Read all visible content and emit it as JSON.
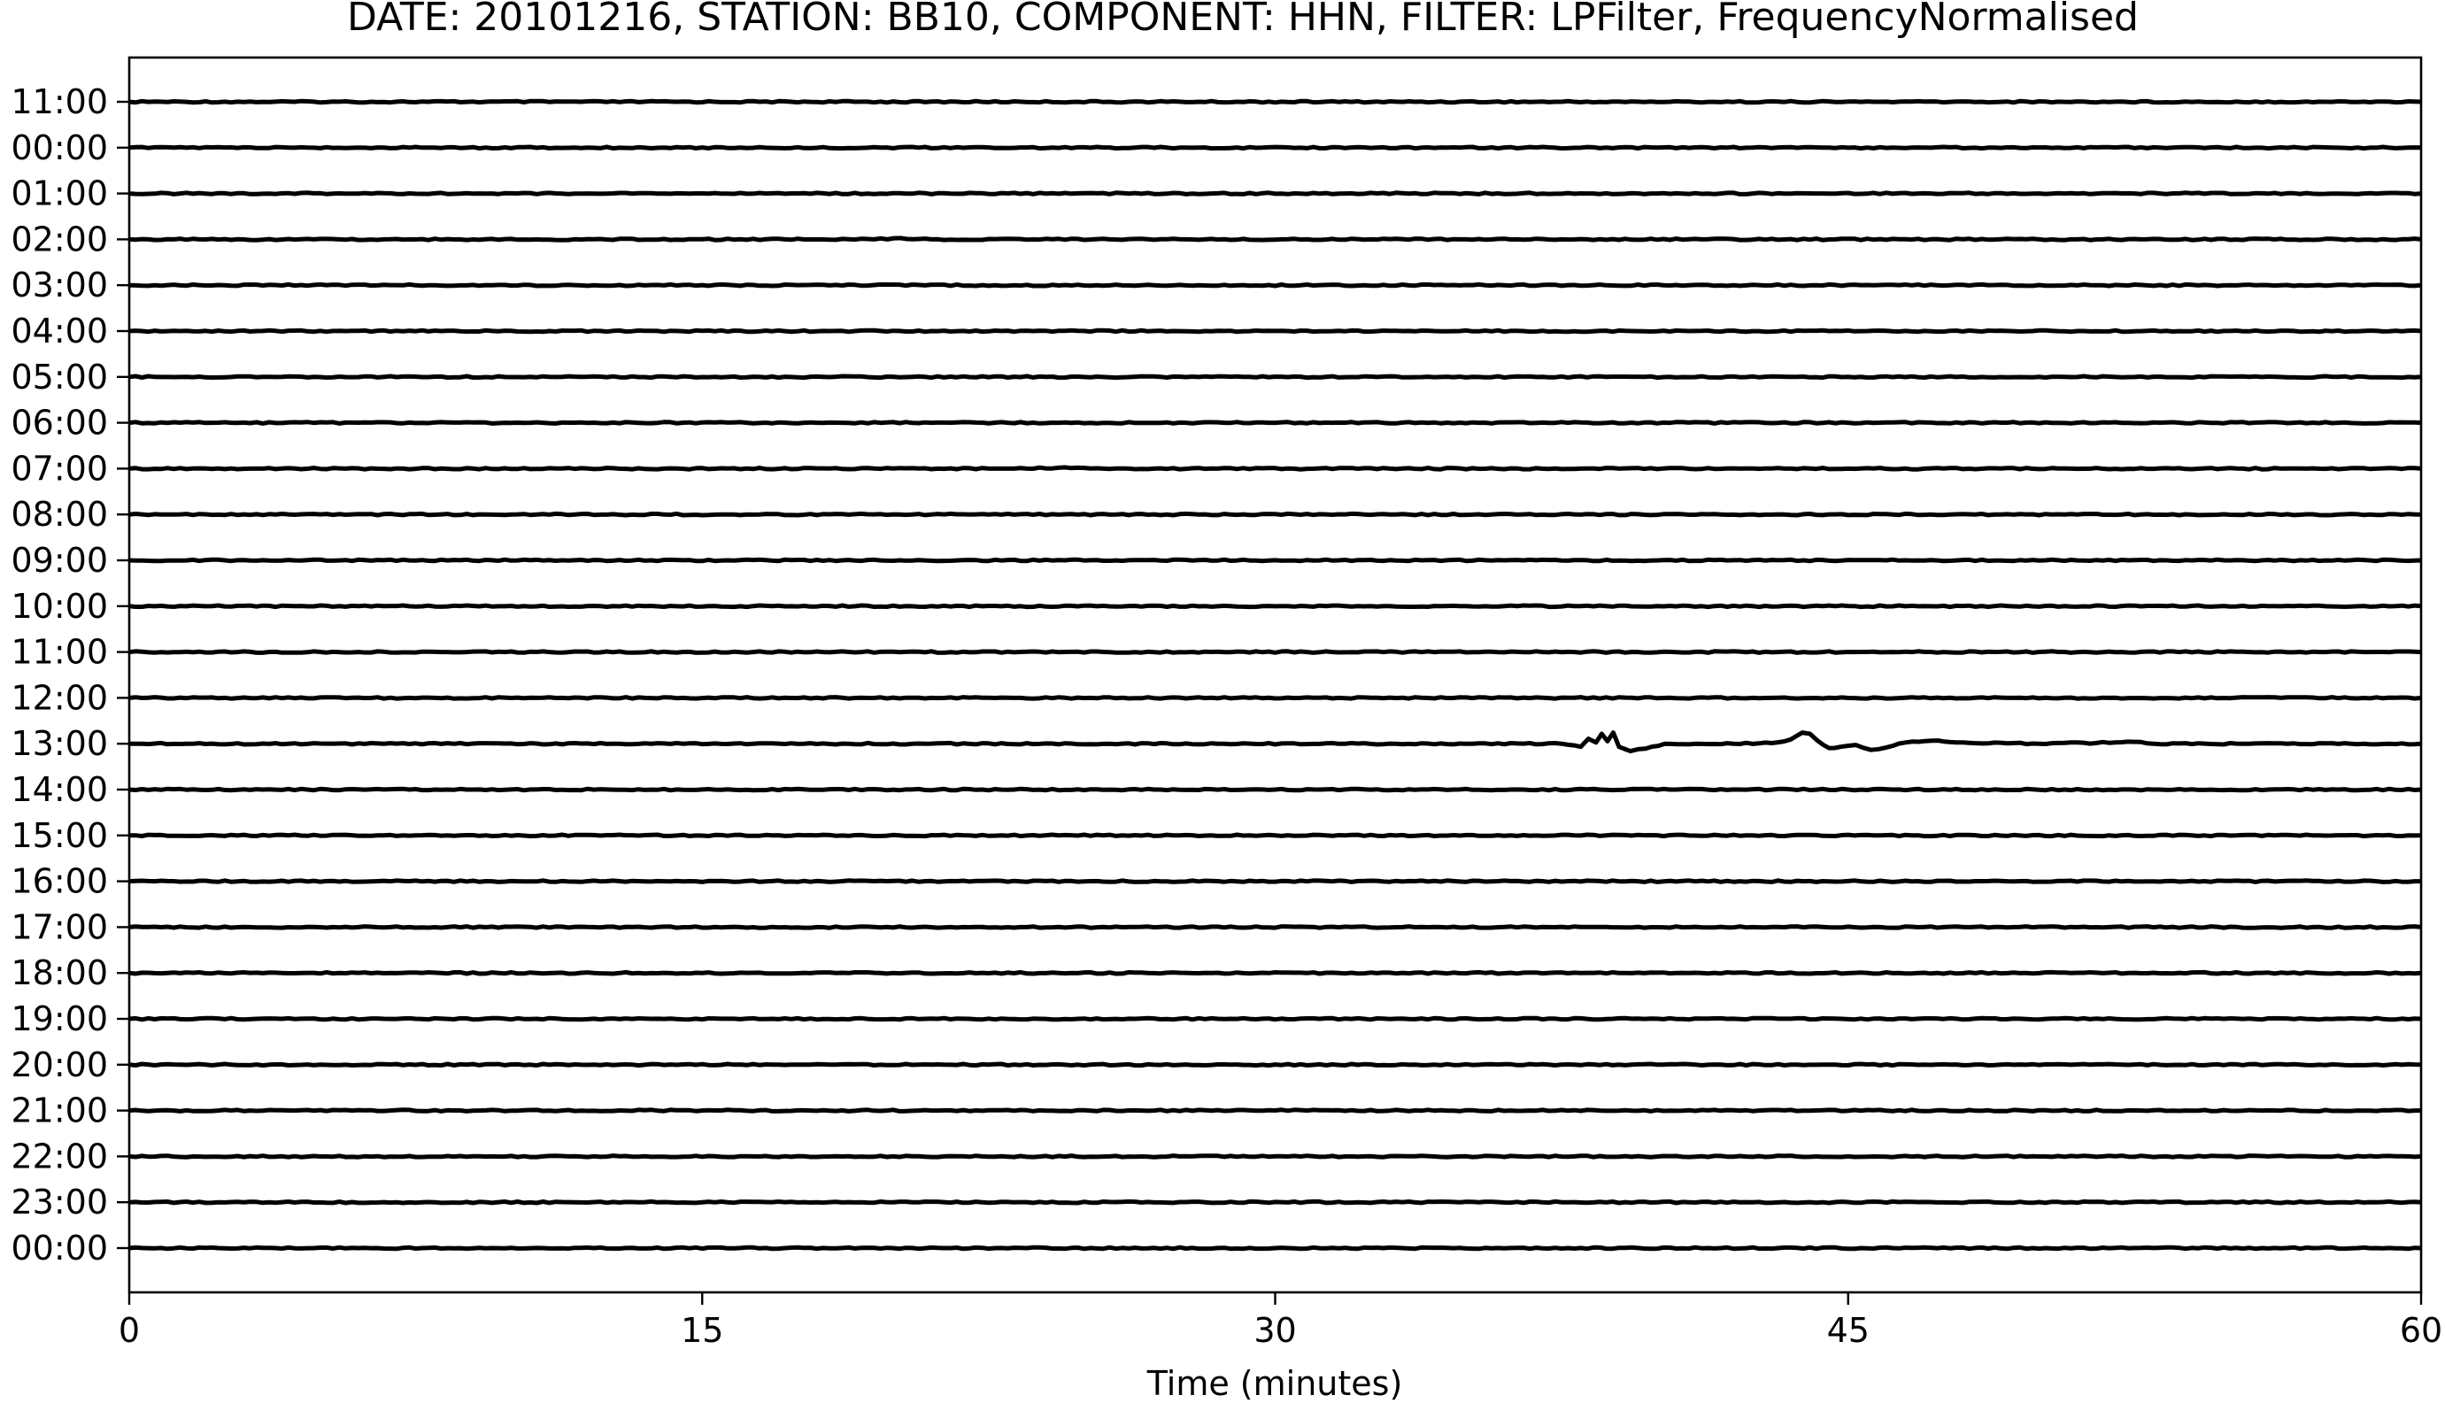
{
  "chart_data": {
    "type": "line",
    "title": "DATE: 20101216, STATION: BB10, COMPONENT: HHN, FILTER: LPFilter, FrequencyNormalised",
    "xlabel": "Time (minutes)",
    "ylabel": "",
    "xlim": [
      0,
      60
    ],
    "x_ticks": [
      0,
      15,
      30,
      45,
      60
    ],
    "y_tick_labels": [
      "11:00",
      "00:00",
      "01:00",
      "02:00",
      "03:00",
      "04:00",
      "05:00",
      "06:00",
      "07:00",
      "08:00",
      "09:00",
      "10:00",
      "11:00",
      "12:00",
      "13:00",
      "14:00",
      "15:00",
      "16:00",
      "17:00",
      "18:00",
      "19:00",
      "20:00",
      "21:00",
      "22:00",
      "23:00",
      "00:00"
    ],
    "grid": false,
    "legend": "none",
    "series": [
      {
        "hour": "11:00",
        "x": [
          0,
          60
        ],
        "y": [
          0,
          0
        ]
      },
      {
        "hour": "00:00",
        "x": [
          0,
          60
        ],
        "y": [
          0,
          0
        ]
      },
      {
        "hour": "01:00",
        "x": [
          0,
          60
        ],
        "y": [
          0,
          0
        ]
      },
      {
        "hour": "02:00",
        "x": [
          0,
          19.5,
          20.2,
          21,
          60
        ],
        "y": [
          0,
          0,
          0.02,
          0,
          0
        ]
      },
      {
        "hour": "03:00",
        "x": [
          0,
          60
        ],
        "y": [
          0,
          0
        ]
      },
      {
        "hour": "04:00",
        "x": [
          0,
          60
        ],
        "y": [
          0,
          0
        ]
      },
      {
        "hour": "05:00",
        "x": [
          0,
          60
        ],
        "y": [
          0,
          0
        ]
      },
      {
        "hour": "06:00",
        "x": [
          0,
          60
        ],
        "y": [
          0,
          0
        ]
      },
      {
        "hour": "07:00",
        "x": [
          0,
          23.5,
          24.5,
          25.5,
          60
        ],
        "y": [
          0,
          0,
          0.02,
          0,
          0
        ]
      },
      {
        "hour": "08:00",
        "x": [
          0,
          60
        ],
        "y": [
          0,
          0
        ]
      },
      {
        "hour": "09:00",
        "x": [
          0,
          60
        ],
        "y": [
          0,
          0
        ]
      },
      {
        "hour": "10:00",
        "x": [
          0,
          60
        ],
        "y": [
          0,
          0
        ]
      },
      {
        "hour": "11:00",
        "x": [
          0,
          60
        ],
        "y": [
          0,
          0
        ]
      },
      {
        "hour": "12:00",
        "x": [
          0,
          60
        ],
        "y": [
          0,
          0
        ]
      },
      {
        "hour": "13:00",
        "x": [
          0,
          37.5,
          38.0,
          38.2,
          38.4,
          38.55,
          38.7,
          38.85,
          39.0,
          39.3,
          39.7,
          40.2,
          41.0,
          42.0,
          43.0,
          43.5,
          43.8,
          44.0,
          44.2,
          44.5,
          44.8,
          45.2,
          45.6,
          46.0,
          46.5,
          47.2,
          48.0,
          50.0,
          52.0,
          52.5,
          53.0,
          60
        ],
        "y": [
          0,
          0,
          -0.05,
          0.08,
          0.02,
          0.16,
          0.04,
          0.18,
          -0.05,
          -0.12,
          -0.08,
          0,
          0,
          0,
          0.01,
          0.07,
          0.18,
          0.16,
          0.05,
          -0.07,
          -0.05,
          -0.02,
          -0.1,
          -0.06,
          0.02,
          0.05,
          0.02,
          0,
          0.02,
          0.03,
          0,
          0
        ]
      },
      {
        "hour": "14:00",
        "x": [
          0,
          60
        ],
        "y": [
          0,
          0
        ]
      },
      {
        "hour": "15:00",
        "x": [
          0,
          60
        ],
        "y": [
          0,
          0
        ]
      },
      {
        "hour": "16:00",
        "x": [
          0,
          60
        ],
        "y": [
          0,
          0
        ]
      },
      {
        "hour": "17:00",
        "x": [
          0,
          60
        ],
        "y": [
          0,
          0
        ]
      },
      {
        "hour": "18:00",
        "x": [
          0,
          60
        ],
        "y": [
          0,
          0
        ]
      },
      {
        "hour": "19:00",
        "x": [
          0,
          60
        ],
        "y": [
          0,
          0
        ]
      },
      {
        "hour": "20:00",
        "x": [
          0,
          60
        ],
        "y": [
          0,
          0
        ]
      },
      {
        "hour": "21:00",
        "x": [
          0,
          60
        ],
        "y": [
          0,
          0
        ]
      },
      {
        "hour": "22:00",
        "x": [
          0,
          60
        ],
        "y": [
          0,
          0
        ]
      },
      {
        "hour": "23:00",
        "x": [
          0,
          60
        ],
        "y": [
          0,
          0
        ]
      },
      {
        "hour": "00:00",
        "x": [
          0,
          60
        ],
        "y": [
          0,
          0
        ]
      }
    ],
    "colors": {
      "trace": "#000000",
      "axes": "#000000",
      "background": "#ffffff"
    }
  }
}
